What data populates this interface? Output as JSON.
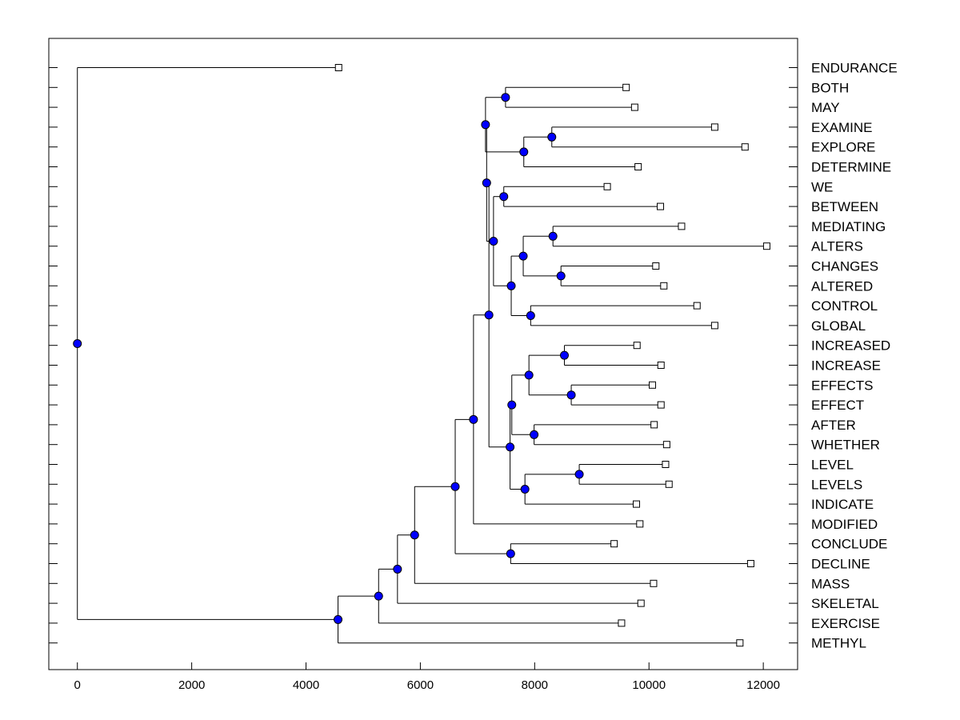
{
  "chart_data": {
    "type": "dendrogram",
    "title": "",
    "xlabel": "",
    "ylabel": "",
    "xlim": [
      -500,
      12600
    ],
    "xticks": [
      0,
      2000,
      4000,
      6000,
      8000,
      10000,
      12000
    ],
    "xtick_labels": [
      "0",
      "2000",
      "4000",
      "6000",
      "8000",
      "10000",
      "12000"
    ],
    "grid": false,
    "node_color": "#0000ff",
    "leaf_order": [
      "ENDURANCE",
      "BOTH",
      "MAY",
      "EXAMINE",
      "EXPLORE",
      "DETERMINE",
      "WE",
      "BETWEEN",
      "MEDIATING",
      "ALTERS",
      "CHANGES",
      "ALTERED",
      "CONTROL",
      "GLOBAL",
      "INCREASED",
      "INCREASE",
      "EFFECTS",
      "EFFECT",
      "AFTER",
      "WHETHER",
      "LEVEL",
      "LEVELS",
      "INDICATE",
      "MODIFIED",
      "CONCLUDE",
      "DECLINE",
      "MASS",
      "SKELETAL",
      "EXERCISE",
      "METHYL"
    ],
    "leaf_values": {
      "ENDURANCE": 4570,
      "BOTH": 9600,
      "MAY": 9750,
      "EXAMINE": 11150,
      "EXPLORE": 11680,
      "DETERMINE": 9810,
      "WE": 9270,
      "BETWEEN": 10200,
      "MEDIATING": 10570,
      "ALTERS": 12060,
      "CHANGES": 10120,
      "ALTERED": 10260,
      "CONTROL": 10840,
      "GLOBAL": 11150,
      "INCREASED": 9790,
      "INCREASE": 10210,
      "EFFECTS": 10060,
      "EFFECT": 10210,
      "AFTER": 10090,
      "WHETHER": 10310,
      "LEVEL": 10290,
      "LEVELS": 10350,
      "INDICATE": 9780,
      "MODIFIED": 9840,
      "CONCLUDE": 9390,
      "DECLINE": 11780,
      "MASS": 10080,
      "SKELETAL": 9860,
      "EXERCISE": 9520,
      "METHYL": 11590
    },
    "merges": [
      {
        "id": "A",
        "height": 7490,
        "children": [
          "BOTH",
          "MAY"
        ]
      },
      {
        "id": "B",
        "height": 8300,
        "children": [
          "EXAMINE",
          "EXPLORE"
        ]
      },
      {
        "id": "C",
        "height": 7810,
        "children": [
          "B",
          "DETERMINE"
        ]
      },
      {
        "id": "D",
        "height": 7140,
        "children": [
          "A",
          "C"
        ]
      },
      {
        "id": "E",
        "height": 7460,
        "children": [
          "WE",
          "BETWEEN"
        ]
      },
      {
        "id": "F",
        "height": 8320,
        "children": [
          "MEDIATING",
          "ALTERS"
        ]
      },
      {
        "id": "G",
        "height": 8460,
        "children": [
          "CHANGES",
          "ALTERED"
        ]
      },
      {
        "id": "H",
        "height": 7800,
        "children": [
          "F",
          "G"
        ]
      },
      {
        "id": "I",
        "height": 7930,
        "children": [
          "CONTROL",
          "GLOBAL"
        ]
      },
      {
        "id": "J",
        "height": 7590,
        "children": [
          "H",
          "I"
        ]
      },
      {
        "id": "K",
        "height": 7280,
        "children": [
          "E",
          "J"
        ]
      },
      {
        "id": "L",
        "height": 7160,
        "children": [
          "D",
          "K"
        ]
      },
      {
        "id": "M",
        "height": 8520,
        "children": [
          "INCREASED",
          "INCREASE"
        ]
      },
      {
        "id": "N",
        "height": 8640,
        "children": [
          "EFFECTS",
          "EFFECT"
        ]
      },
      {
        "id": "O",
        "height": 7900,
        "children": [
          "M",
          "N"
        ]
      },
      {
        "id": "P",
        "height": 7990,
        "children": [
          "AFTER",
          "WHETHER"
        ]
      },
      {
        "id": "Q",
        "height": 7600,
        "children": [
          "O",
          "P"
        ]
      },
      {
        "id": "R",
        "height": 8780,
        "children": [
          "LEVEL",
          "LEVELS"
        ]
      },
      {
        "id": "S",
        "height": 7830,
        "children": [
          "R",
          "INDICATE"
        ]
      },
      {
        "id": "T",
        "height": 7570,
        "children": [
          "Q",
          "S"
        ]
      },
      {
        "id": "U",
        "height": 7200,
        "children": [
          "L",
          "T"
        ]
      },
      {
        "id": "V",
        "height": 6930,
        "children": [
          "U",
          "MODIFIED"
        ]
      },
      {
        "id": "W",
        "height": 7580,
        "children": [
          "CONCLUDE",
          "DECLINE"
        ]
      },
      {
        "id": "X",
        "height": 6610,
        "children": [
          "V",
          "W"
        ]
      },
      {
        "id": "Y",
        "height": 5900,
        "children": [
          "X",
          "MASS"
        ]
      },
      {
        "id": "Z",
        "height": 5600,
        "children": [
          "Y",
          "SKELETAL"
        ]
      },
      {
        "id": "AA",
        "height": 5270,
        "children": [
          "Z",
          "EXERCISE"
        ]
      },
      {
        "id": "AB",
        "height": 4560,
        "children": [
          "AA",
          "METHYL"
        ]
      },
      {
        "id": "ROOT",
        "height": 0,
        "children": [
          "ENDURANCE",
          "AB"
        ]
      }
    ]
  }
}
